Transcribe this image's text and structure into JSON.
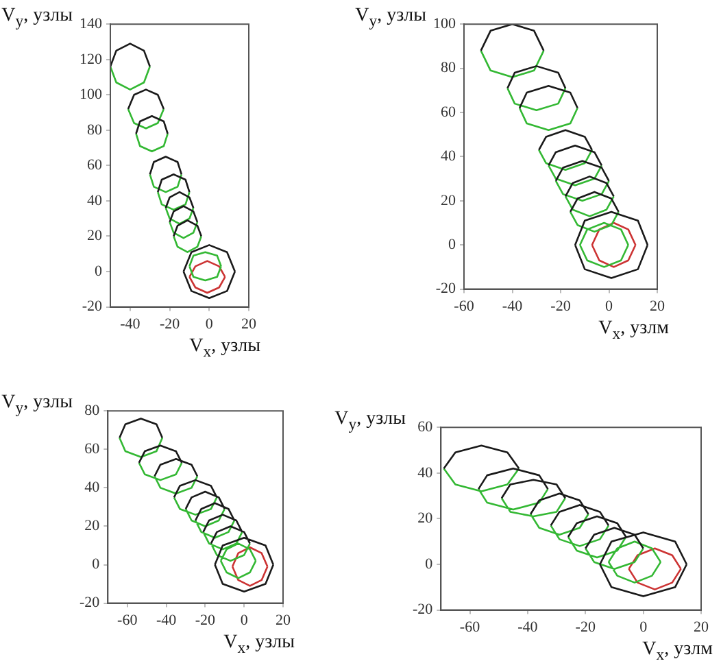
{
  "chart_data": [
    {
      "type": "line",
      "xlabel": "V$_{x}$, узлы",
      "ylabel": "V$_{y}$, узлы",
      "marker": "none",
      "xlim": [
        -50,
        20
      ],
      "xticks": [
        -40,
        -20,
        0,
        20
      ],
      "ylim": [
        -20,
        140
      ],
      "yticks": [
        -20,
        0,
        20,
        40,
        60,
        80,
        100,
        120,
        140
      ],
      "series": [
        {
          "color": "#1a1a1a",
          "x": [
            -50,
            -47,
            -40,
            -33,
            -30,
            null,
            -41,
            -38,
            -32,
            -26,
            -23,
            null,
            -37,
            -35,
            -29,
            -23,
            -21,
            null,
            -30,
            -28,
            -22,
            -16,
            -14,
            null,
            -26,
            -24,
            -18,
            -12,
            -10,
            null,
            -22,
            -20,
            -15,
            -10,
            -8,
            null,
            -20,
            -18,
            -13,
            -8,
            -6,
            null,
            -18,
            -16,
            -11,
            -6,
            -4,
            null,
            -13,
            -9,
            0,
            9,
            13,
            null,
            -13,
            -9,
            0,
            9,
            13
          ],
          "values": [
            116,
            125,
            129,
            125,
            116,
            null,
            92,
            100,
            103,
            100,
            92,
            null,
            78,
            85,
            88,
            85,
            78,
            null,
            55,
            62,
            65,
            62,
            55,
            null,
            45,
            52,
            55,
            52,
            45,
            null,
            36,
            42,
            45,
            42,
            36,
            null,
            28,
            34,
            37,
            34,
            28,
            null,
            20,
            26,
            29,
            26,
            20,
            null,
            0,
            11,
            15,
            11,
            0,
            null,
            0,
            -11,
            -15,
            -11,
            0
          ]
        },
        {
          "color": "#33b833",
          "x": [
            -50,
            -47,
            -40,
            -33,
            -30,
            null,
            -41,
            -38,
            -32,
            -26,
            -23,
            null,
            -37,
            -35,
            -29,
            -23,
            -21,
            null,
            -30,
            -28,
            -22,
            -16,
            -14,
            null,
            -26,
            -24,
            -18,
            -12,
            -10,
            null,
            -22,
            -20,
            -15,
            -10,
            -8,
            null,
            -20,
            -18,
            -13,
            -8,
            -6,
            null,
            -18,
            -16,
            -11,
            -6,
            -4,
            null,
            -10,
            -8,
            -2,
            4,
            6,
            null,
            -10,
            -8,
            -2,
            4,
            6
          ],
          "values": [
            116,
            107,
            103,
            107,
            116,
            null,
            92,
            84,
            81,
            84,
            92,
            null,
            78,
            71,
            68,
            71,
            78,
            null,
            55,
            48,
            45,
            48,
            55,
            null,
            45,
            38,
            35,
            38,
            45,
            null,
            36,
            30,
            27,
            30,
            36,
            null,
            28,
            22,
            19,
            22,
            28,
            null,
            20,
            14,
            11,
            14,
            20,
            null,
            3,
            9,
            11,
            9,
            3,
            null,
            3,
            -3,
            -5,
            -3,
            3
          ]
        },
        {
          "color": "#cc3333",
          "x": [
            -10,
            -7,
            -1,
            5,
            8,
            null,
            -10,
            -7,
            -1,
            5,
            8
          ],
          "values": [
            -3,
            3,
            6,
            3,
            -3,
            null,
            -3,
            -9,
            -12,
            -9,
            -3
          ]
        }
      ]
    },
    {
      "type": "line",
      "xlabel": "V$_{x}$, узлм",
      "ylabel": "V$_{y}$, узлы",
      "marker": "none",
      "xlim": [
        -60,
        20
      ],
      "xticks": [
        -60,
        -40,
        -20,
        0,
        20
      ],
      "ylim": [
        -20,
        100
      ],
      "yticks": [
        -20,
        0,
        20,
        40,
        60,
        80,
        100
      ],
      "series": [
        {
          "color": "#1a1a1a",
          "x": [
            -53,
            -49,
            -40,
            -31,
            -27,
            null,
            -42,
            -39,
            -30,
            -21,
            -18,
            null,
            -37,
            -34,
            -25,
            -16,
            -13,
            null,
            -29,
            -26,
            -18,
            -10,
            -7,
            null,
            -25,
            -22,
            -14,
            -6,
            -3,
            null,
            -22,
            -19,
            -11,
            -3,
            0,
            null,
            -18,
            -15,
            -8,
            -1,
            2,
            null,
            -16,
            -13,
            -6,
            1,
            4,
            null,
            -14,
            -10,
            1,
            12,
            16,
            null,
            -14,
            -10,
            1,
            12,
            16
          ],
          "values": [
            88,
            97,
            100,
            97,
            88,
            null,
            71,
            78,
            81,
            78,
            71,
            null,
            62,
            69,
            72,
            69,
            62,
            null,
            43,
            49,
            52,
            49,
            43,
            null,
            36,
            42,
            45,
            42,
            36,
            null,
            29,
            35,
            38,
            35,
            29,
            null,
            22,
            28,
            31,
            28,
            22,
            null,
            15,
            21,
            24,
            21,
            15,
            null,
            0,
            11,
            15,
            11,
            0,
            null,
            0,
            -11,
            -15,
            -11,
            0
          ]
        },
        {
          "color": "#33b833",
          "x": [
            -53,
            -49,
            -40,
            -31,
            -27,
            null,
            -42,
            -39,
            -30,
            -21,
            -18,
            null,
            -37,
            -34,
            -25,
            -16,
            -13,
            null,
            -29,
            -26,
            -18,
            -10,
            -7,
            null,
            -25,
            -22,
            -14,
            -6,
            -3,
            null,
            -22,
            -19,
            -11,
            -3,
            0,
            null,
            -18,
            -15,
            -8,
            -1,
            2,
            null,
            -16,
            -13,
            -6,
            1,
            4,
            null,
            -12,
            -9,
            -2,
            5,
            8,
            null,
            -12,
            -9,
            -2,
            5,
            8
          ],
          "values": [
            88,
            79,
            76,
            79,
            88,
            null,
            71,
            64,
            61,
            64,
            71,
            null,
            62,
            55,
            52,
            55,
            62,
            null,
            43,
            37,
            34,
            37,
            43,
            null,
            36,
            30,
            27,
            30,
            36,
            null,
            29,
            23,
            20,
            23,
            29,
            null,
            22,
            16,
            13,
            16,
            22,
            null,
            15,
            9,
            6,
            9,
            15,
            null,
            0,
            7,
            10,
            7,
            0,
            null,
            0,
            -7,
            -10,
            -7,
            0
          ]
        },
        {
          "color": "#cc3333",
          "x": [
            -7,
            -4,
            2,
            8,
            11,
            null,
            -7,
            -4,
            2,
            8,
            11
          ],
          "values": [
            0,
            7,
            10,
            7,
            0,
            null,
            0,
            -7,
            -10,
            -7,
            0
          ]
        }
      ]
    },
    {
      "type": "line",
      "xlabel": "V$_{x}$, узлы",
      "ylabel": "V$_{y}$, узлы",
      "marker": "none",
      "xlim": [
        -70,
        20
      ],
      "xticks": [
        -60,
        -40,
        -20,
        0,
        20
      ],
      "ylim": [
        -20,
        80
      ],
      "yticks": [
        -20,
        0,
        20,
        40,
        60,
        80
      ],
      "series": [
        {
          "color": "#1a1a1a",
          "x": [
            -64,
            -61,
            -53,
            -45,
            -42,
            null,
            -54,
            -51,
            -43,
            -35,
            -32,
            null,
            -46,
            -43,
            -35,
            -27,
            -24,
            null,
            -36,
            -33,
            -25,
            -17,
            -14,
            null,
            -30,
            -27,
            -20,
            -13,
            -10,
            null,
            -25,
            -22,
            -15,
            -8,
            -5,
            null,
            -21,
            -18,
            -11,
            -4,
            -1,
            null,
            -17,
            -14,
            -7,
            0,
            3,
            null,
            -15,
            -11,
            0,
            11,
            15,
            null,
            -15,
            -11,
            0,
            11,
            15
          ],
          "values": [
            66,
            73,
            76,
            73,
            66,
            null,
            53,
            59,
            62,
            59,
            53,
            null,
            46,
            52,
            55,
            52,
            46,
            null,
            35,
            41,
            44,
            41,
            35,
            null,
            29,
            35,
            38,
            35,
            29,
            null,
            23,
            29,
            32,
            29,
            23,
            null,
            17,
            23,
            26,
            23,
            17,
            null,
            11,
            17,
            20,
            17,
            11,
            null,
            0,
            10,
            14,
            10,
            0,
            null,
            0,
            -10,
            -14,
            -10,
            0
          ]
        },
        {
          "color": "#33b833",
          "x": [
            -64,
            -61,
            -53,
            -45,
            -42,
            null,
            -54,
            -51,
            -43,
            -35,
            -32,
            null,
            -46,
            -43,
            -35,
            -27,
            -24,
            null,
            -36,
            -33,
            -25,
            -17,
            -14,
            null,
            -30,
            -27,
            -20,
            -13,
            -10,
            null,
            -25,
            -22,
            -15,
            -8,
            -5,
            null,
            -21,
            -18,
            -11,
            -4,
            -1,
            null,
            -17,
            -14,
            -7,
            0,
            3,
            null,
            -12,
            -9,
            -3,
            3,
            6,
            null,
            -12,
            -9,
            -3,
            3,
            6
          ],
          "values": [
            66,
            59,
            56,
            59,
            66,
            null,
            53,
            47,
            44,
            47,
            53,
            null,
            46,
            40,
            37,
            40,
            46,
            null,
            35,
            29,
            26,
            29,
            35,
            null,
            29,
            23,
            20,
            23,
            29,
            null,
            23,
            17,
            14,
            17,
            23,
            null,
            17,
            11,
            8,
            11,
            17,
            null,
            11,
            5,
            2,
            5,
            11,
            null,
            2,
            8,
            11,
            8,
            2,
            null,
            2,
            -4,
            -7,
            -4,
            2
          ]
        },
        {
          "color": "#cc3333",
          "x": [
            -6,
            -3,
            3,
            9,
            12,
            null,
            -6,
            -3,
            3,
            9,
            12
          ],
          "values": [
            -1,
            6,
            9,
            6,
            -1,
            null,
            -1,
            -8,
            -11,
            -8,
            -1
          ]
        }
      ]
    },
    {
      "type": "line",
      "xlabel": "V$_{x}$, узлм",
      "ylabel": "V$_{y}$, узлы",
      "marker": "none",
      "xlim": [
        -70,
        20
      ],
      "xticks": [
        -60,
        -40,
        -20,
        0,
        20
      ],
      "ylim": [
        -20,
        60
      ],
      "yticks": [
        -20,
        0,
        20,
        40,
        60
      ],
      "series": [
        {
          "color": "#1a1a1a",
          "x": [
            -69,
            -65,
            -56,
            -47,
            -43,
            null,
            -57,
            -54,
            -45,
            -36,
            -33,
            null,
            -49,
            -46,
            -38,
            -30,
            -27,
            null,
            -39,
            -36,
            -29,
            -22,
            -19,
            null,
            -32,
            -29,
            -22,
            -15,
            -12,
            null,
            -26,
            -23,
            -16,
            -9,
            -6,
            null,
            -20,
            -17,
            -10,
            -3,
            0,
            null,
            -15,
            -11,
            0,
            11,
            15,
            null,
            -15,
            -11,
            0,
            11,
            15
          ],
          "values": [
            42,
            49,
            52,
            49,
            42,
            null,
            33,
            39,
            42,
            39,
            33,
            null,
            29,
            35,
            37,
            35,
            29,
            null,
            22,
            28,
            31,
            28,
            22,
            null,
            17,
            23,
            26,
            23,
            17,
            null,
            12,
            18,
            21,
            18,
            12,
            null,
            7,
            13,
            16,
            13,
            7,
            null,
            0,
            10,
            14,
            10,
            0,
            null,
            0,
            -10,
            -14,
            -10,
            0
          ]
        },
        {
          "color": "#33b833",
          "x": [
            -69,
            -65,
            -56,
            -47,
            -43,
            null,
            -57,
            -54,
            -45,
            -36,
            -33,
            null,
            -49,
            -46,
            -38,
            -30,
            -27,
            null,
            -39,
            -36,
            -29,
            -22,
            -19,
            null,
            -32,
            -29,
            -22,
            -15,
            -12,
            null,
            -26,
            -23,
            -16,
            -9,
            -6,
            null,
            -20,
            -17,
            -10,
            -3,
            0,
            null,
            -12,
            -9,
            -3,
            3,
            6,
            null,
            -12,
            -9,
            -3,
            3,
            6
          ],
          "values": [
            42,
            35,
            32,
            35,
            42,
            null,
            33,
            27,
            24,
            27,
            33,
            null,
            29,
            23,
            21,
            23,
            29,
            null,
            22,
            16,
            13,
            16,
            22,
            null,
            17,
            11,
            8,
            11,
            17,
            null,
            12,
            6,
            3,
            6,
            12,
            null,
            7,
            1,
            -2,
            1,
            7,
            null,
            1,
            7,
            10,
            7,
            1,
            null,
            1,
            -5,
            -8,
            -5,
            1
          ]
        },
        {
          "color": "#cc3333",
          "x": [
            -5,
            -2,
            4,
            10,
            13,
            null,
            -5,
            -2,
            4,
            10,
            13
          ],
          "values": [
            -2,
            4,
            7,
            4,
            -2,
            null,
            -2,
            -8,
            -11,
            -8,
            -2
          ]
        }
      ]
    }
  ]
}
